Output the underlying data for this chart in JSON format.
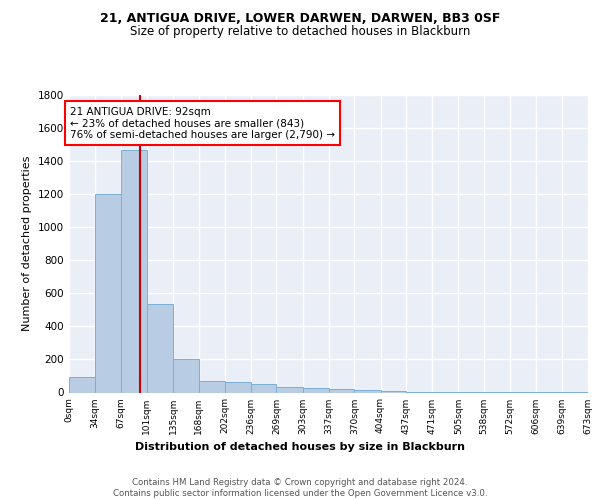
{
  "title1": "21, ANTIGUA DRIVE, LOWER DARWEN, DARWEN, BB3 0SF",
  "title2": "Size of property relative to detached houses in Blackburn",
  "xlabel": "Distribution of detached houses by size in Blackburn",
  "ylabel": "Number of detached properties",
  "footer1": "Contains HM Land Registry data © Crown copyright and database right 2024.",
  "footer2": "Contains public sector information licensed under the Open Government Licence v3.0.",
  "annotation_line1": "21 ANTIGUA DRIVE: 92sqm",
  "annotation_line2": "← 23% of detached houses are smaller (843)",
  "annotation_line3": "76% of semi-detached houses are larger (2,790) →",
  "bar_values": [
    95,
    1200,
    1470,
    535,
    205,
    70,
    65,
    50,
    35,
    30,
    20,
    15,
    10,
    5,
    5,
    5,
    5,
    5,
    5,
    5
  ],
  "bin_edges": [
    0,
    34,
    67,
    101,
    135,
    168,
    202,
    236,
    269,
    303,
    337,
    370,
    404,
    437,
    471,
    505,
    538,
    572,
    606,
    639,
    673
  ],
  "tick_labels": [
    "0sqm",
    "34sqm",
    "67sqm",
    "101sqm",
    "135sqm",
    "168sqm",
    "202sqm",
    "236sqm",
    "269sqm",
    "303sqm",
    "337sqm",
    "370sqm",
    "404sqm",
    "437sqm",
    "471sqm",
    "505sqm",
    "538sqm",
    "572sqm",
    "606sqm",
    "639sqm",
    "673sqm"
  ],
  "bar_color": "#b8cce4",
  "bar_edge_color": "#7bafd4",
  "bg_color": "#eaeff7",
  "grid_color": "#ffffff",
  "vline_x": 92,
  "vline_color": "#cc0000",
  "ylim": [
    0,
    1800
  ],
  "yticks": [
    0,
    200,
    400,
    600,
    800,
    1000,
    1200,
    1400,
    1600,
    1800
  ],
  "title1_fontsize": 9,
  "title2_fontsize": 8.5,
  "ylabel_fontsize": 8,
  "xlabel_fontsize": 8,
  "tick_fontsize": 6.5,
  "ytick_fontsize": 7.5,
  "footer_fontsize": 6.2,
  "ann_fontsize": 7.5
}
